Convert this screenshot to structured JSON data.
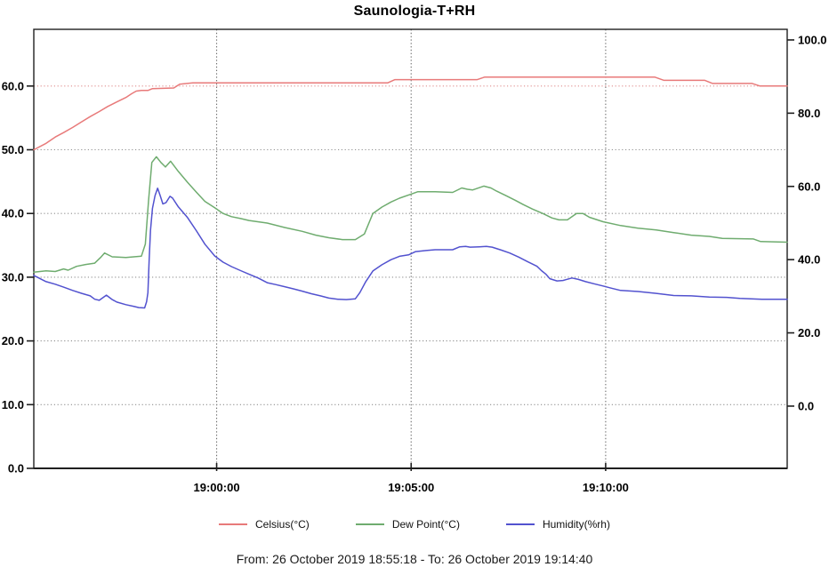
{
  "title": "Saunologia-T+RH",
  "footer": {
    "text": "From: 26 October 2019 18:55:18  -  To: 26 October 2019 19:14:40"
  },
  "chart_data": {
    "type": "line",
    "title": "Saunologia-T+RH",
    "grid": {
      "color": "#909090",
      "accent_color": "#e08e8e",
      "axis_color": "#1f1f1f"
    },
    "legend_position": "bottom",
    "x_axis": {
      "unit": "time",
      "start_label": "18:55:18",
      "end_label": "19:14:40",
      "min": 0,
      "max": 1162,
      "ticks": [
        {
          "t": 282,
          "label": "19:00:00"
        },
        {
          "t": 582,
          "label": "19:05:00"
        },
        {
          "t": 882,
          "label": "19:10:00"
        }
      ]
    },
    "left_axis": {
      "min": 0,
      "max": 68.9,
      "ticks": [
        {
          "value": 0,
          "label": "0.0"
        },
        {
          "value": 10,
          "label": "10.0"
        },
        {
          "value": 20,
          "label": "20.0"
        },
        {
          "value": 30,
          "label": "30.0"
        },
        {
          "value": 40,
          "label": "40.0"
        },
        {
          "value": 50,
          "label": "50.0"
        },
        {
          "value": 60,
          "label": "60.0",
          "grid": "accent"
        }
      ]
    },
    "right_axis": {
      "min": -17.0,
      "max": 102.9,
      "ticks": [
        {
          "value": 0,
          "label": "0.0"
        },
        {
          "value": 20,
          "label": "20.0"
        },
        {
          "value": 40,
          "label": "40.0"
        },
        {
          "value": 60,
          "label": "60.0"
        },
        {
          "value": 80,
          "label": "80.0"
        },
        {
          "value": 100,
          "label": "100.0"
        }
      ]
    },
    "series": [
      {
        "id": "celsius",
        "name": "Celsius(°C)",
        "color": "#e87a7a",
        "axis": "left",
        "points": [
          [
            0,
            50.0
          ],
          [
            19,
            51.0
          ],
          [
            33,
            52.0
          ],
          [
            46,
            52.7
          ],
          [
            60,
            53.5
          ],
          [
            74,
            54.4
          ],
          [
            87,
            55.2
          ],
          [
            101,
            56.0
          ],
          [
            114,
            56.8
          ],
          [
            128,
            57.5
          ],
          [
            142,
            58.2
          ],
          [
            151,
            58.8
          ],
          [
            158,
            59.2
          ],
          [
            166,
            59.3
          ],
          [
            176,
            59.3
          ],
          [
            183,
            59.6
          ],
          [
            216,
            59.7
          ],
          [
            225,
            60.3
          ],
          [
            245,
            60.5
          ],
          [
            546,
            60.5
          ],
          [
            557,
            61.0
          ],
          [
            684,
            61.0
          ],
          [
            695,
            61.4
          ],
          [
            958,
            61.4
          ],
          [
            972,
            60.9
          ],
          [
            1035,
            60.9
          ],
          [
            1047,
            60.4
          ],
          [
            1108,
            60.4
          ],
          [
            1120,
            60.0
          ],
          [
            1162,
            60.0
          ]
        ]
      },
      {
        "id": "dew-point",
        "name": "Dew Point(°C)",
        "color": "#6fac6f",
        "axis": "left",
        "points": [
          [
            0,
            30.8
          ],
          [
            19,
            31.0
          ],
          [
            33,
            30.9
          ],
          [
            46,
            31.3
          ],
          [
            53,
            31.1
          ],
          [
            66,
            31.7
          ],
          [
            80,
            32.0
          ],
          [
            94,
            32.2
          ],
          [
            103,
            33.1
          ],
          [
            109,
            33.8
          ],
          [
            121,
            33.2
          ],
          [
            142,
            33.1
          ],
          [
            166,
            33.3
          ],
          [
            172,
            35.2
          ],
          [
            177,
            42.0
          ],
          [
            182,
            48.0
          ],
          [
            189,
            48.9
          ],
          [
            196,
            48.0
          ],
          [
            203,
            47.3
          ],
          [
            211,
            48.2
          ],
          [
            223,
            46.6
          ],
          [
            237,
            44.9
          ],
          [
            251,
            43.3
          ],
          [
            264,
            41.9
          ],
          [
            279,
            40.9
          ],
          [
            292,
            40.0
          ],
          [
            305,
            39.5
          ],
          [
            319,
            39.2
          ],
          [
            332,
            38.9
          ],
          [
            360,
            38.5
          ],
          [
            387,
            37.8
          ],
          [
            414,
            37.2
          ],
          [
            435,
            36.6
          ],
          [
            455,
            36.2
          ],
          [
            476,
            35.9
          ],
          [
            496,
            35.9
          ],
          [
            510,
            36.8
          ],
          [
            523,
            40.0
          ],
          [
            537,
            41.0
          ],
          [
            551,
            41.8
          ],
          [
            564,
            42.4
          ],
          [
            581,
            43.0
          ],
          [
            592,
            43.4
          ],
          [
            619,
            43.4
          ],
          [
            646,
            43.3
          ],
          [
            660,
            44.0
          ],
          [
            669,
            43.8
          ],
          [
            677,
            43.7
          ],
          [
            694,
            44.3
          ],
          [
            705,
            44.0
          ],
          [
            714,
            43.5
          ],
          [
            728,
            42.8
          ],
          [
            742,
            42.1
          ],
          [
            755,
            41.4
          ],
          [
            769,
            40.7
          ],
          [
            785,
            40.0
          ],
          [
            799,
            39.3
          ],
          [
            810,
            39.0
          ],
          [
            823,
            39.0
          ],
          [
            837,
            40.0
          ],
          [
            847,
            40.0
          ],
          [
            857,
            39.4
          ],
          [
            878,
            38.7
          ],
          [
            905,
            38.1
          ],
          [
            932,
            37.7
          ],
          [
            960,
            37.4
          ],
          [
            987,
            37.0
          ],
          [
            1014,
            36.6
          ],
          [
            1042,
            36.4
          ],
          [
            1062,
            36.1
          ],
          [
            1110,
            36.0
          ],
          [
            1121,
            35.6
          ],
          [
            1162,
            35.5
          ]
        ]
      },
      {
        "id": "humidity",
        "name": "Humidity(%rh)",
        "color": "#5252cf",
        "axis": "right",
        "points": [
          [
            0,
            35.7
          ],
          [
            19,
            34.0
          ],
          [
            33,
            33.3
          ],
          [
            46,
            32.5
          ],
          [
            60,
            31.6
          ],
          [
            74,
            30.8
          ],
          [
            87,
            30.1
          ],
          [
            94,
            29.2
          ],
          [
            101,
            28.9
          ],
          [
            112,
            30.3
          ],
          [
            121,
            29.1
          ],
          [
            128,
            28.4
          ],
          [
            142,
            27.7
          ],
          [
            155,
            27.2
          ],
          [
            162,
            26.9
          ],
          [
            171,
            26.8
          ],
          [
            174,
            28.5
          ],
          [
            176,
            31.0
          ],
          [
            178,
            40.0
          ],
          [
            180,
            48.0
          ],
          [
            183,
            54.0
          ],
          [
            187,
            57.5
          ],
          [
            191,
            59.5
          ],
          [
            195,
            57.5
          ],
          [
            199,
            55.2
          ],
          [
            204,
            55.6
          ],
          [
            210,
            57.3
          ],
          [
            214,
            56.8
          ],
          [
            223,
            54.4
          ],
          [
            237,
            51.5
          ],
          [
            251,
            47.8
          ],
          [
            264,
            44.2
          ],
          [
            279,
            41.0
          ],
          [
            292,
            39.3
          ],
          [
            305,
            38.1
          ],
          [
            319,
            37.0
          ],
          [
            332,
            36.0
          ],
          [
            346,
            35.0
          ],
          [
            360,
            33.7
          ],
          [
            373,
            33.2
          ],
          [
            387,
            32.6
          ],
          [
            401,
            32.0
          ],
          [
            414,
            31.4
          ],
          [
            428,
            30.7
          ],
          [
            442,
            30.1
          ],
          [
            455,
            29.5
          ],
          [
            469,
            29.2
          ],
          [
            482,
            29.1
          ],
          [
            496,
            29.3
          ],
          [
            503,
            31.0
          ],
          [
            512,
            34.0
          ],
          [
            523,
            36.9
          ],
          [
            537,
            38.6
          ],
          [
            551,
            40.0
          ],
          [
            564,
            40.9
          ],
          [
            578,
            41.3
          ],
          [
            589,
            42.2
          ],
          [
            605,
            42.5
          ],
          [
            619,
            42.7
          ],
          [
            646,
            42.7
          ],
          [
            657,
            43.5
          ],
          [
            666,
            43.6
          ],
          [
            673,
            43.4
          ],
          [
            687,
            43.5
          ],
          [
            698,
            43.6
          ],
          [
            707,
            43.4
          ],
          [
            721,
            42.6
          ],
          [
            734,
            41.8
          ],
          [
            748,
            40.7
          ],
          [
            762,
            39.4
          ],
          [
            776,
            38.2
          ],
          [
            783,
            37.0
          ],
          [
            790,
            36.0
          ],
          [
            796,
            34.8
          ],
          [
            807,
            34.2
          ],
          [
            816,
            34.3
          ],
          [
            830,
            35.0
          ],
          [
            840,
            34.6
          ],
          [
            851,
            34.0
          ],
          [
            864,
            33.4
          ],
          [
            878,
            32.8
          ],
          [
            891,
            32.2
          ],
          [
            905,
            31.6
          ],
          [
            932,
            31.3
          ],
          [
            960,
            30.8
          ],
          [
            987,
            30.2
          ],
          [
            1014,
            30.1
          ],
          [
            1042,
            29.8
          ],
          [
            1069,
            29.7
          ],
          [
            1089,
            29.4
          ],
          [
            1123,
            29.2
          ],
          [
            1162,
            29.2
          ]
        ]
      }
    ]
  }
}
